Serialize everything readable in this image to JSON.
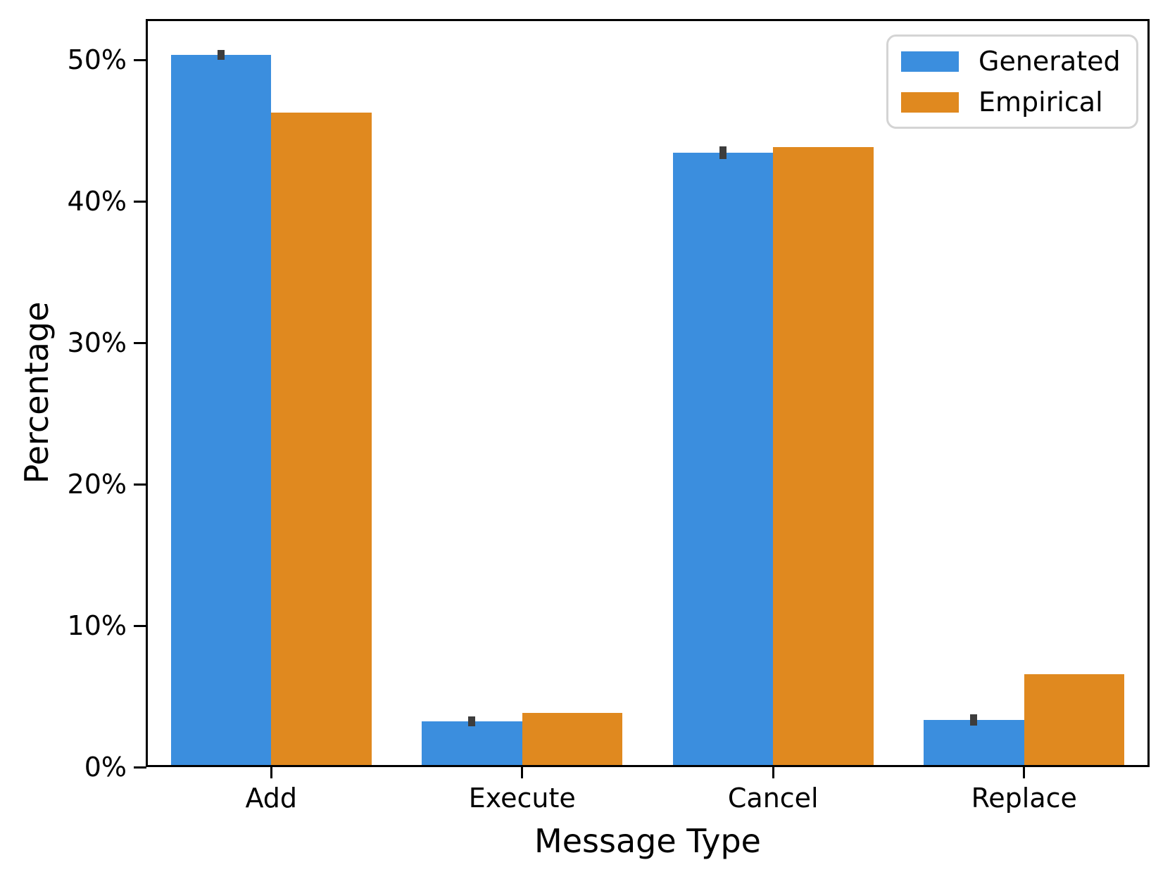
{
  "chart_data": {
    "type": "bar",
    "title": "",
    "categories": [
      "Add",
      "Execute",
      "Cancel",
      "Replace"
    ],
    "series": [
      {
        "name": "Generated",
        "color": "#3b8ede",
        "values": [
          50.2,
          3.1,
          43.3,
          3.2
        ],
        "errors": [
          0.35,
          0.35,
          0.45,
          0.4
        ]
      },
      {
        "name": "Empirical",
        "color": "#e0891f",
        "values": [
          46.1,
          3.7,
          43.7,
          6.4
        ],
        "errors": null
      }
    ],
    "xlabel": "Message Type",
    "ylabel": "Percentage",
    "ylim": [
      0,
      52.9
    ],
    "yticks": [
      0,
      10,
      20,
      30,
      40,
      50
    ],
    "ytick_labels": [
      "0%",
      "10%",
      "20%",
      "30%",
      "40%",
      "50%"
    ],
    "grid": false,
    "legend": {
      "position": "upper right",
      "entries": [
        "Generated",
        "Empirical"
      ]
    },
    "error_bar_color": "#3d3d3d",
    "bar_group_width_fraction": 0.8
  }
}
